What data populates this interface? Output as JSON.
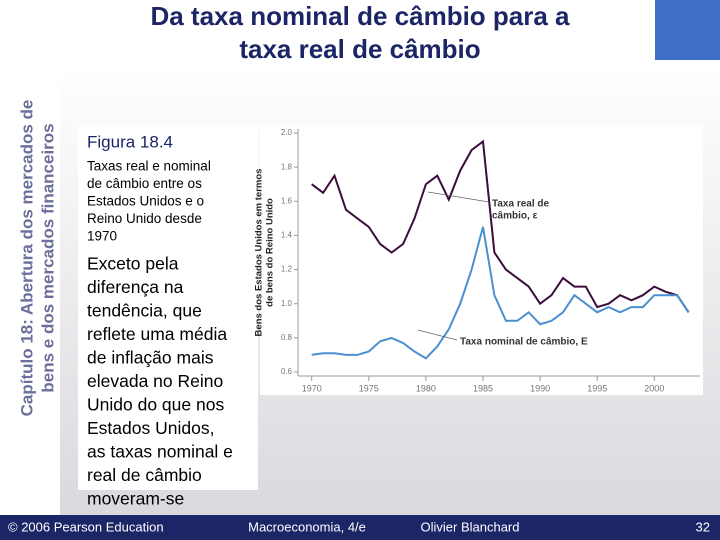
{
  "sidebar": {
    "lines": [
      "Capítulo 18: Abertura dos mercados de",
      "bens e dos mercados financeiros"
    ]
  },
  "title": {
    "lines": [
      "Da taxa nominal de câmbio para a",
      "taxa real de câmbio"
    ]
  },
  "figure_label": "Figura 18.4",
  "caption": {
    "lines": [
      "Taxas real e nominal",
      "de câmbio entre os",
      "Estados Unidos e o",
      "Reino Unido desde",
      "1970"
    ]
  },
  "body": {
    "lines": [
      "Exceto pela",
      "diferença na",
      "tendência, que",
      "reflete uma média",
      "de inflação mais",
      "elevada no Reino",
      "Unido do que nos",
      "Estados Unidos,",
      "as taxas nominal e",
      "real de câmbio",
      "moveram-se"
    ]
  },
  "footer": {
    "copyright": "© 2006 Pearson Education",
    "book": "Macroeconomia, 4/e",
    "author": "Olivier Blanchard",
    "page": "32"
  },
  "chart_data": {
    "type": "line",
    "y_label_lines": [
      "Bens dos Estados Unidos em termos",
      "de bens do Reino Unido"
    ],
    "x": [
      1970,
      1971,
      1972,
      1973,
      1974,
      1975,
      1976,
      1977,
      1978,
      1979,
      1980,
      1981,
      1982,
      1983,
      1984,
      1985,
      1986,
      1987,
      1988,
      1989,
      1990,
      1991,
      1992,
      1993,
      1994,
      1995,
      1996,
      1997,
      1998,
      1999,
      2000,
      2001,
      2002,
      2003
    ],
    "series": [
      {
        "name_lines": [
          "Taxa real de",
          "câmbio, ε"
        ],
        "color": "#3a0d3c",
        "values": [
          1.7,
          1.65,
          1.75,
          1.55,
          1.5,
          1.45,
          1.35,
          1.3,
          1.35,
          1.5,
          1.7,
          1.75,
          1.61,
          1.78,
          1.9,
          1.95,
          1.3,
          1.2,
          1.15,
          1.1,
          1.0,
          1.05,
          1.15,
          1.1,
          1.1,
          0.98,
          1.0,
          1.05,
          1.02,
          1.05,
          1.1,
          1.07,
          1.05,
          0.95
        ]
      },
      {
        "name_lines": [
          "Taxa nominal de câmbio, E"
        ],
        "color": "#4a8fd0",
        "values": [
          0.7,
          0.71,
          0.71,
          0.7,
          0.7,
          0.72,
          0.78,
          0.8,
          0.77,
          0.72,
          0.68,
          0.75,
          0.85,
          1.0,
          1.2,
          1.45,
          1.05,
          0.9,
          0.9,
          0.95,
          0.88,
          0.9,
          0.95,
          1.05,
          1.0,
          0.95,
          0.98,
          0.95,
          0.98,
          0.98,
          1.05,
          1.05,
          1.05,
          0.95
        ]
      }
    ],
    "xlim": [
      1968.8,
      2004
    ],
    "xticks": [
      1970,
      1975,
      1980,
      1985,
      1990,
      1995,
      2000
    ],
    "ylim": [
      0.6,
      2.0
    ],
    "yticks": [
      0.6,
      0.8,
      {
        "value": 1,
        "label": "1.0"
      },
      1.2,
      1.4,
      1.6,
      1.8,
      {
        "value": 2,
        "label": "2.0"
      }
    ]
  }
}
